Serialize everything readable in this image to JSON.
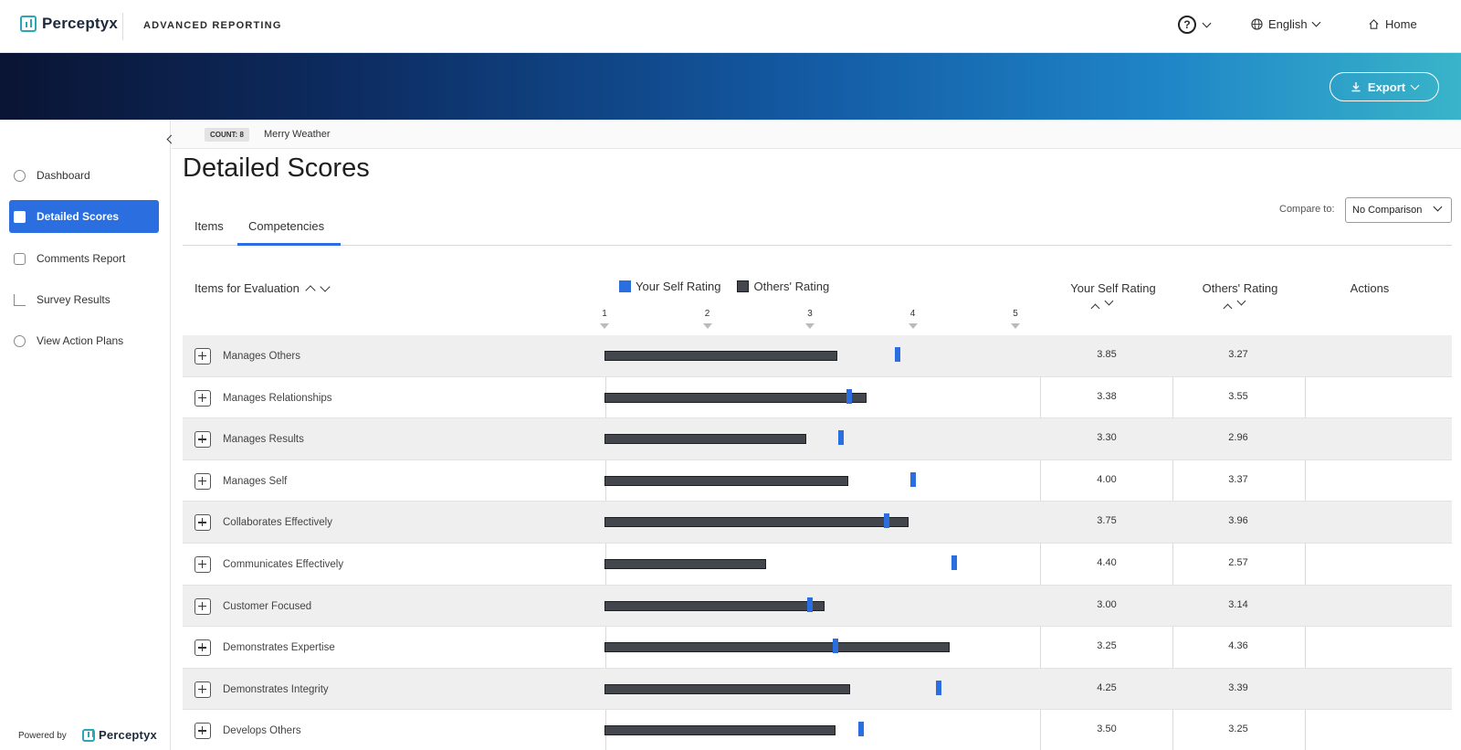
{
  "header": {
    "logo_text": "Perceptyx",
    "app_title": "ADVANCED REPORTING",
    "help_symbol": "?",
    "language": "English",
    "home": "Home"
  },
  "banner": {
    "export_label": "Export"
  },
  "sidebar": {
    "items": [
      {
        "label": "Dashboard",
        "icon": "dashboard-icon"
      },
      {
        "label": "Detailed Scores",
        "icon": "thumbs-up-icon"
      },
      {
        "label": "Comments Report",
        "icon": "comments-icon"
      },
      {
        "label": "Survey Results",
        "icon": "bar-chart-icon"
      },
      {
        "label": "View Action Plans",
        "icon": "check-circle-icon"
      }
    ],
    "powered_by": "Powered by",
    "powered_logo": "Perceptyx"
  },
  "context": {
    "count_label": "COUNT: 8",
    "name": "Merry Weather"
  },
  "page": {
    "title": "Detailed Scores"
  },
  "tabs": [
    {
      "label": "Items"
    },
    {
      "label": "Competencies"
    }
  ],
  "compare": {
    "label": "Compare to:",
    "value": "No Comparison"
  },
  "table": {
    "col_items": "Items for Evaluation",
    "legend_self": "Your Self Rating",
    "legend_others": "Others' Rating",
    "col_self": "Your Self Rating",
    "col_others": "Others' Rating",
    "col_actions": "Actions",
    "axis_ticks": [
      "1",
      "2",
      "3",
      "4",
      "5"
    ]
  },
  "colors": {
    "self": "#2a6ee0",
    "others": "#43464d",
    "accent": "#2a6ee0"
  },
  "chart_data": {
    "type": "bar",
    "xlim": [
      1,
      5
    ],
    "categories": [
      "Manages Others",
      "Manages Relationships",
      "Manages Results",
      "Manages Self",
      "Collaborates Effectively",
      "Communicates Effectively",
      "Customer Focused",
      "Demonstrates Expertise",
      "Demonstrates Integrity",
      "Develops Others"
    ],
    "series": [
      {
        "name": "Your Self Rating",
        "values": [
          3.85,
          3.38,
          3.3,
          4.0,
          3.75,
          4.4,
          3.0,
          3.25,
          4.25,
          3.5
        ]
      },
      {
        "name": "Others' Rating",
        "values": [
          3.27,
          3.55,
          2.96,
          3.37,
          3.96,
          2.57,
          3.14,
          4.36,
          3.39,
          3.25
        ]
      }
    ]
  },
  "rows": [
    {
      "label": "Manages Others",
      "self": "3.85",
      "others": "3.27"
    },
    {
      "label": "Manages Relationships",
      "self": "3.38",
      "others": "3.55"
    },
    {
      "label": "Manages Results",
      "self": "3.30",
      "others": "2.96"
    },
    {
      "label": "Manages Self",
      "self": "4.00",
      "others": "3.37"
    },
    {
      "label": "Collaborates Effectively",
      "self": "3.75",
      "others": "3.96"
    },
    {
      "label": "Communicates Effectively",
      "self": "4.40",
      "others": "2.57"
    },
    {
      "label": "Customer Focused",
      "self": "3.00",
      "others": "3.14"
    },
    {
      "label": "Demonstrates Expertise",
      "self": "3.25",
      "others": "4.36"
    },
    {
      "label": "Demonstrates Integrity",
      "self": "4.25",
      "others": "3.39"
    },
    {
      "label": "Develops Others",
      "self": "3.50",
      "others": "3.25"
    }
  ]
}
